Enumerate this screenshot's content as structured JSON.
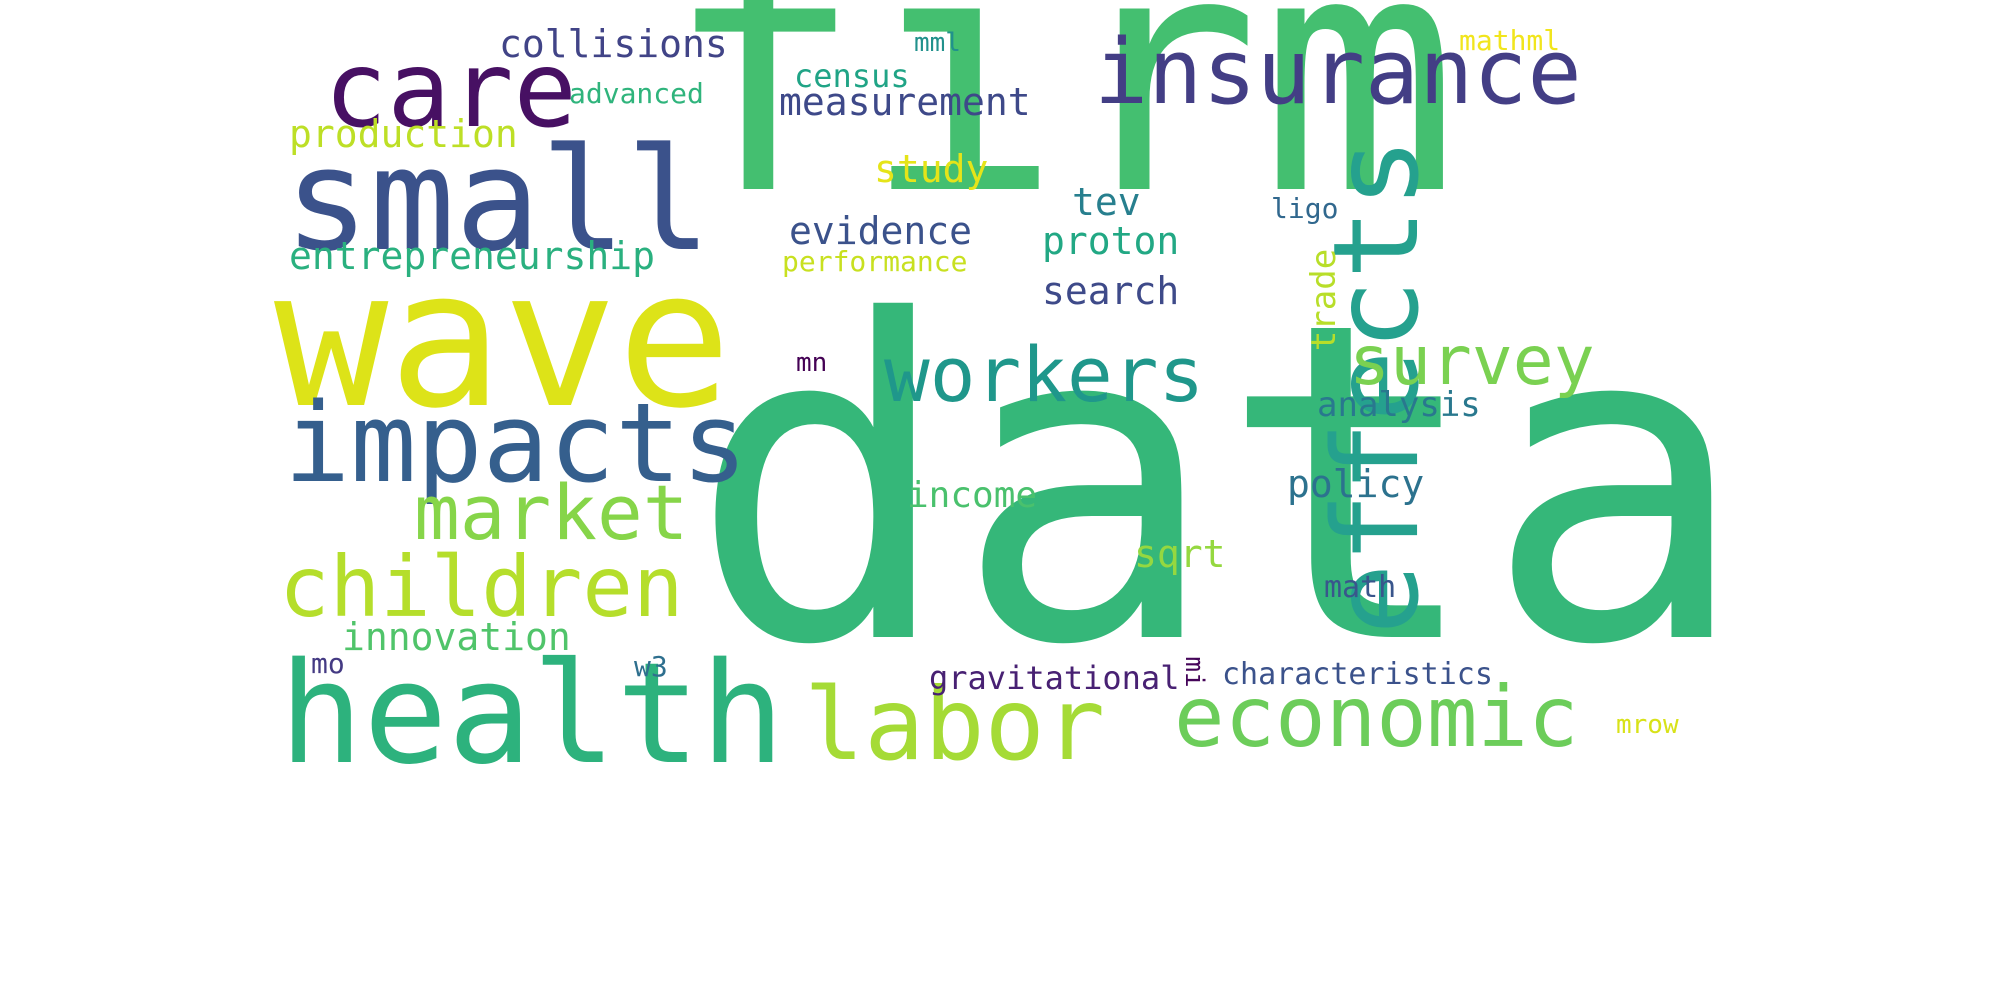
{
  "wordcloud": {
    "words": [
      {
        "text": "firm",
        "color": "#44bf70"
      },
      {
        "text": "data",
        "color": "#35b779"
      },
      {
        "text": "wave",
        "color": "#dde318"
      },
      {
        "text": "small",
        "color": "#3b528b"
      },
      {
        "text": "care",
        "color": "#471063"
      },
      {
        "text": "insurance",
        "color": "#433e85"
      },
      {
        "text": "effects",
        "color": "#25a18e"
      },
      {
        "text": "health",
        "color": "#2db27d"
      },
      {
        "text": "impacts",
        "color": "#355f8d"
      },
      {
        "text": "children",
        "color": "#b5de2b"
      },
      {
        "text": "workers",
        "color": "#1f978b"
      },
      {
        "text": "economic",
        "color": "#6ccd5a"
      },
      {
        "text": "labor",
        "color": "#a5db36"
      },
      {
        "text": "market",
        "color": "#86d549"
      },
      {
        "text": "survey",
        "color": "#7ad151"
      },
      {
        "text": "entrepreneurship",
        "color": "#2ab07f"
      },
      {
        "text": "collisions",
        "color": "#414487"
      },
      {
        "text": "production",
        "color": "#bddf26"
      },
      {
        "text": "measurement",
        "color": "#3e4989"
      },
      {
        "text": "census",
        "color": "#20a486"
      },
      {
        "text": "advanced",
        "color": "#2fb47c"
      },
      {
        "text": "mml",
        "color": "#21918c"
      },
      {
        "text": "mathml",
        "color": "#f1e51d"
      },
      {
        "text": "study",
        "color": "#e5e419"
      },
      {
        "text": "evidence",
        "color": "#3b528b"
      },
      {
        "text": "performance",
        "color": "#c8e020"
      },
      {
        "text": "tev",
        "color": "#277f8e"
      },
      {
        "text": "proton",
        "color": "#22a884"
      },
      {
        "text": "search",
        "color": "#3e4a89"
      },
      {
        "text": "trade",
        "color": "#b8de29"
      },
      {
        "text": "ligo",
        "color": "#31688e"
      },
      {
        "text": "analysis",
        "color": "#29788e"
      },
      {
        "text": "policy",
        "color": "#2c728e"
      },
      {
        "text": "income",
        "color": "#4ac16d"
      },
      {
        "text": "sqrt",
        "color": "#95d840"
      },
      {
        "text": "math",
        "color": "#39568c"
      },
      {
        "text": "mn",
        "color": "#440154"
      },
      {
        "text": "innovation",
        "color": "#50c46a"
      },
      {
        "text": "mo",
        "color": "#443a83"
      },
      {
        "text": "w3",
        "color": "#2e6f8e"
      },
      {
        "text": "gravitational",
        "color": "#482173"
      },
      {
        "text": "mi",
        "color": "#450559"
      },
      {
        "text": "characteristics",
        "color": "#3b528b"
      },
      {
        "text": "mrow",
        "color": "#d8e219"
      }
    ]
  }
}
